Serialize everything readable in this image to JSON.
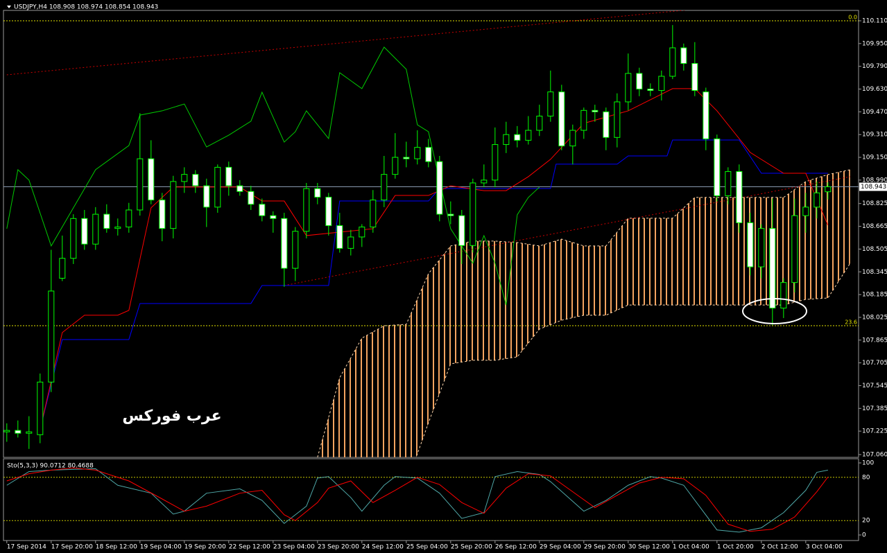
{
  "chart_data": {
    "type": "candlestick",
    "title": "USDJPY,H4  108.908 108.974 108.854 108.943",
    "watermark": "عرب فوركس",
    "xlim": [
      -0.3,
      76.76
    ],
    "ylim": [
      107.06,
      110.11
    ],
    "yticks": [
      {
        "value": 110.11,
        "label": "110.110"
      },
      {
        "value": 109.95,
        "label": "109.950"
      },
      {
        "value": 109.79,
        "label": "109.790"
      },
      {
        "value": 109.63,
        "label": "109.630"
      },
      {
        "value": 109.47,
        "label": "109.470"
      },
      {
        "value": 109.31,
        "label": "109.310"
      },
      {
        "value": 109.15,
        "label": "109.150"
      },
      {
        "value": 108.99,
        "label": "108.990"
      },
      108.825,
      108.665,
      108.505,
      108.345,
      108.185,
      108.025,
      107.865,
      107.705,
      107.545,
      107.385,
      107.225,
      {
        "value": 107.06,
        "label": "107.060"
      }
    ],
    "xticks": [
      {
        "value": 0,
        "label": "17 Sep 2014"
      },
      {
        "value": 4,
        "label": "17 Sep 20:00"
      },
      {
        "value": 8,
        "label": "18 Sep 12:00"
      },
      {
        "value": 12,
        "label": "19 Sep 04:00"
      },
      {
        "value": 16,
        "label": "19 Sep 20:00"
      },
      {
        "value": 20,
        "label": "22 Sep 12:00"
      },
      {
        "value": 24,
        "label": "23 Sep 04:00"
      },
      {
        "value": 28,
        "label": "23 Sep 20:00"
      },
      {
        "value": 32,
        "label": "24 Sep 12:00"
      },
      {
        "value": 36,
        "label": "25 Sep 04:00"
      },
      {
        "value": 40,
        "label": "25 Sep 20:00"
      },
      {
        "value": 44,
        "label": "26 Sep 12:00"
      },
      {
        "value": 48,
        "label": "29 Sep 04:00"
      },
      {
        "value": 52,
        "label": "29 Sep 20:00"
      },
      {
        "value": 56,
        "label": "30 Sep 12:00"
      },
      {
        "value": 60,
        "label": "1 Oct 04:00"
      },
      {
        "value": 64,
        "label": "1 Oct 20:00"
      },
      {
        "value": 68,
        "label": "2 Oct 12:00"
      },
      {
        "value": 72,
        "label": "3 Oct 04:00"
      }
    ],
    "current_price": 108.943,
    "bull_color": "#000000",
    "bear_color": "#ffffff",
    "outline_color": "#00ff00",
    "open": [
      107.22,
      107.23,
      107.21,
      107.2,
      107.57,
      108.3,
      108.44,
      108.72,
      108.54,
      108.75,
      108.65,
      108.66,
      108.78,
      109.14,
      108.85,
      108.65,
      108.98,
      109.03,
      108.95,
      108.8,
      109.08,
      108.95,
      108.91,
      108.82,
      108.74,
      108.72,
      108.37,
      108.63,
      108.93,
      108.87,
      108.67,
      108.51,
      108.59,
      108.66,
      108.85,
      109.03,
      109.15,
      109.14,
      109.22,
      109.12,
      108.75,
      108.74,
      108.53,
      108.97,
      108.99,
      109.24,
      109.31,
      109.27,
      109.34,
      109.44,
      109.61,
      109.23,
      109.34,
      109.48,
      109.47,
      109.29,
      109.54,
      109.74,
      109.63,
      109.62,
      109.72,
      109.92,
      109.81,
      109.61,
      109.28,
      108.88,
      109.05,
      108.69,
      108.38,
      108.65,
      108.09,
      108.27,
      108.74,
      108.8,
      108.908
    ],
    "high": [
      107.28,
      107.3,
      107.33,
      107.63,
      108.5,
      108.6,
      108.75,
      108.78,
      108.8,
      108.82,
      108.72,
      108.83,
      109.46,
      109.27,
      108.9,
      109.02,
      109.08,
      109.06,
      109,
      109.1,
      109.12,
      108.99,
      108.95,
      108.86,
      108.77,
      108.76,
      108.66,
      108.97,
      108.97,
      108.9,
      108.76,
      108.64,
      108.68,
      108.92,
      109.16,
      109.32,
      109.26,
      109.34,
      109.28,
      109.16,
      108.84,
      108.78,
      109,
      109.1,
      109.36,
      109.4,
      109.37,
      109.44,
      109.52,
      109.76,
      109.66,
      109.38,
      109.5,
      109.52,
      109.5,
      109.6,
      109.88,
      109.78,
      109.67,
      109.76,
      110.08,
      109.95,
      109.96,
      109.64,
      109.31,
      109.08,
      109.1,
      108.76,
      108.68,
      108.86,
      108.3,
      108.86,
      108.9,
      108.98,
      108.974
    ],
    "low": [
      107.15,
      107.18,
      107.1,
      107.14,
      107.5,
      108.28,
      108.4,
      108.5,
      108.5,
      108.62,
      108.6,
      108.62,
      108.74,
      108.82,
      108.56,
      108.58,
      108.9,
      108.9,
      108.66,
      108.76,
      108.88,
      108.88,
      108.78,
      108.7,
      108.62,
      108.24,
      108.28,
      108.58,
      108.82,
      108.6,
      108.48,
      108.46,
      108.52,
      108.62,
      108.8,
      109,
      109.08,
      109.1,
      109.08,
      108.7,
      108.68,
      108.4,
      108.48,
      108.94,
      108.94,
      109.18,
      109.22,
      109.24,
      109.3,
      109.4,
      109.2,
      109.1,
      109.28,
      109.4,
      109.2,
      109.22,
      109.48,
      109.58,
      109.58,
      109.55,
      109.7,
      109.76,
      109.58,
      109.2,
      108.84,
      108.82,
      108.62,
      108.32,
      108.3,
      107.97,
      108.02,
      108.2,
      108.62,
      108.72,
      108.854
    ],
    "close": [
      107.23,
      107.21,
      107.22,
      107.57,
      108.21,
      108.44,
      108.72,
      108.54,
      108.75,
      108.65,
      108.66,
      108.78,
      109.14,
      108.85,
      108.65,
      108.98,
      109.03,
      108.95,
      108.8,
      109.08,
      108.95,
      108.91,
      108.82,
      108.74,
      108.72,
      108.37,
      108.63,
      108.93,
      108.87,
      108.67,
      108.51,
      108.59,
      108.66,
      108.85,
      109.03,
      109.15,
      109.14,
      109.22,
      109.12,
      108.75,
      108.74,
      108.53,
      108.97,
      108.99,
      109.24,
      109.31,
      109.27,
      109.34,
      109.44,
      109.61,
      109.23,
      109.34,
      109.48,
      109.47,
      109.29,
      109.54,
      109.74,
      109.63,
      109.62,
      109.72,
      109.92,
      109.81,
      109.62,
      109.28,
      108.88,
      109.05,
      108.69,
      108.38,
      108.65,
      108.09,
      108.27,
      108.74,
      108.8,
      108.9,
      108.943
    ],
    "lines": [
      {
        "color": "#0000ff",
        "x": [
          3,
          5,
          11,
          12,
          22,
          23,
          29,
          30,
          38,
          39,
          49,
          49.5,
          55,
          56,
          59.5,
          60,
          66,
          68,
          74
        ],
        "values": [
          107.236,
          107.869,
          107.869,
          108.122,
          108.122,
          108.249,
          108.249,
          108.843,
          108.843,
          108.931,
          108.931,
          109.102,
          109.102,
          109.16,
          109.16,
          109.272,
          109.272,
          109.038,
          109.038
        ]
      },
      {
        "color": "#ff0000",
        "x": [
          3,
          5,
          7,
          10,
          11,
          13,
          15,
          21,
          23,
          25,
          27,
          33,
          35,
          38,
          40,
          43,
          45,
          47,
          49,
          52,
          56,
          60,
          62,
          64,
          67,
          70,
          72,
          74
        ],
        "values": [
          107.236,
          107.918,
          108.04,
          108.04,
          108.074,
          108.795,
          108.941,
          108.941,
          108.843,
          108.843,
          108.6,
          108.648,
          108.882,
          108.882,
          108.95,
          108.916,
          108.916,
          109.014,
          109.136,
          109.389,
          109.477,
          109.633,
          109.633,
          109.477,
          109.184,
          109.038,
          109.038,
          108.673
        ]
      },
      {
        "color": "#00cc00",
        "x": [
          0,
          1,
          2,
          4,
          6,
          8,
          11,
          12,
          14,
          16,
          18,
          20,
          22,
          23,
          25,
          26,
          27,
          29,
          30,
          32,
          34,
          36,
          37,
          38,
          40,
          42,
          43,
          44,
          45,
          46,
          47,
          48
        ],
        "values": [
          108.648,
          109.063,
          108.99,
          108.527,
          108.795,
          109.063,
          109.233,
          109.447,
          109.477,
          109.525,
          109.223,
          109.306,
          109.404,
          109.608,
          109.257,
          109.33,
          109.477,
          109.282,
          109.745,
          109.633,
          109.925,
          109.769,
          109.379,
          109.33,
          108.648,
          108.405,
          108.6,
          108.405,
          108.112,
          108.746,
          108.868,
          108.941
        ]
      }
    ],
    "cloud": {
      "color": "#f4a460",
      "x": [
        28,
        30,
        32,
        34,
        36,
        38,
        40,
        42,
        44,
        46,
        48,
        50,
        52,
        54,
        56,
        58,
        60,
        62,
        64,
        66,
        68,
        70,
        72,
        74,
        76
      ],
      "upper": [
        107.041,
        107.601,
        107.879,
        107.966,
        107.976,
        108.332,
        108.527,
        108.561,
        108.561,
        108.551,
        108.527,
        108.575,
        108.527,
        108.527,
        108.722,
        108.722,
        108.722,
        108.868,
        108.868,
        108.868,
        108.868,
        108.868,
        108.98,
        109.029,
        109.063
      ],
      "lower": [
        107.041,
        106.846,
        106.846,
        106.846,
        106.846,
        107.284,
        107.698,
        107.723,
        107.723,
        107.747,
        107.942,
        108.005,
        108.04,
        108.04,
        108.112,
        108.112,
        108.112,
        108.112,
        108.112,
        108.112,
        108.112,
        108.112,
        108.151,
        108.161,
        108.405
      ]
    },
    "trendlines": [
      {
        "color": "#cc0000",
        "x": [
          0,
          67.5
        ],
        "values": [
          109.73,
          110.232
        ]
      },
      {
        "color": "#cc0000",
        "x": [
          25,
          76
        ],
        "values": [
          108.249,
          109.014
        ]
      }
    ],
    "levels": [
      {
        "value": 110.11,
        "label": "0.0"
      },
      {
        "value": 107.966,
        "label": "23.6"
      }
    ],
    "level_color": "#e6e600",
    "indicator": {
      "title": "Sto(5,3,3) 90.0712 80.4688",
      "ylim": [
        0,
        100
      ],
      "yticks": [
        100,
        80,
        20,
        0
      ],
      "series": [
        {
          "color": "#4fa8a8",
          "x": [
            0,
            2,
            4,
            8,
            10,
            13,
            15,
            16,
            18,
            21,
            23,
            25,
            27,
            28,
            29,
            31,
            32,
            34,
            35,
            37,
            39,
            41,
            43,
            44,
            46,
            48,
            49,
            52,
            54,
            56,
            58,
            59,
            61,
            64,
            66,
            68,
            70,
            72,
            73,
            74
          ],
          "values": [
            69,
            88,
            90,
            92,
            69,
            58,
            29,
            33,
            58,
            64,
            48,
            16,
            40,
            79,
            81,
            52,
            33,
            69,
            81,
            79,
            58,
            23,
            31,
            81,
            88,
            84,
            74,
            33,
            48,
            69,
            81,
            79,
            69,
            7,
            4,
            10,
            31,
            62,
            87,
            90.0712
          ]
        },
        {
          "color": "#ff0000",
          "x": [
            0,
            2,
            4,
            6,
            8,
            11,
            14,
            16,
            18,
            21,
            23,
            25,
            26,
            28,
            29,
            31,
            33,
            35,
            37,
            39,
            41,
            43,
            45,
            47,
            49,
            51,
            53,
            55,
            57,
            59,
            61,
            63,
            65,
            67,
            69,
            71,
            73,
            74
          ],
          "values": [
            75,
            85,
            90,
            93,
            90,
            75,
            50,
            33,
            40,
            58,
            62,
            28,
            20,
            45,
            65,
            75,
            45,
            62,
            80,
            70,
            45,
            30,
            65,
            85,
            82,
            60,
            38,
            55,
            72,
            80,
            78,
            55,
            15,
            5,
            8,
            25,
            60,
            80.4688
          ]
        }
      ]
    }
  }
}
